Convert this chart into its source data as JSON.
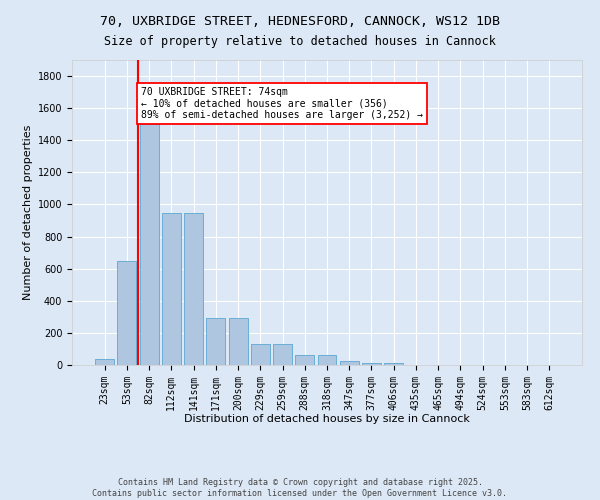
{
  "title_line1": "70, UXBRIDGE STREET, HEDNESFORD, CANNOCK, WS12 1DB",
  "title_line2": "Size of property relative to detached houses in Cannock",
  "xlabel": "Distribution of detached houses by size in Cannock",
  "ylabel": "Number of detached properties",
  "categories": [
    "23sqm",
    "53sqm",
    "82sqm",
    "112sqm",
    "141sqm",
    "171sqm",
    "200sqm",
    "229sqm",
    "259sqm",
    "288sqm",
    "318sqm",
    "347sqm",
    "377sqm",
    "406sqm",
    "435sqm",
    "465sqm",
    "494sqm",
    "524sqm",
    "553sqm",
    "583sqm",
    "612sqm"
  ],
  "values": [
    40,
    650,
    1500,
    950,
    950,
    295,
    295,
    130,
    130,
    65,
    65,
    25,
    10,
    10,
    0,
    0,
    0,
    0,
    0,
    0,
    0
  ],
  "bar_color": "#aec6e0",
  "bar_edge_color": "#6aaed6",
  "vline_color": "red",
  "vline_x": 1.5,
  "annotation_text": "70 UXBRIDGE STREET: 74sqm\n← 10% of detached houses are smaller (356)\n89% of semi-detached houses are larger (3,252) →",
  "annotation_box_color": "white",
  "annotation_border_color": "red",
  "ylim": [
    0,
    1900
  ],
  "yticks": [
    0,
    200,
    400,
    600,
    800,
    1000,
    1200,
    1400,
    1600,
    1800
  ],
  "bg_color": "#dce8f5",
  "plot_bg_color": "#dce8f5",
  "footer_line1": "Contains HM Land Registry data © Crown copyright and database right 2025.",
  "footer_line2": "Contains public sector information licensed under the Open Government Licence v3.0.",
  "title_fontsize": 9.5,
  "subtitle_fontsize": 8.5,
  "axis_label_fontsize": 8,
  "tick_fontsize": 7,
  "annotation_fontsize": 7,
  "footer_fontsize": 6
}
